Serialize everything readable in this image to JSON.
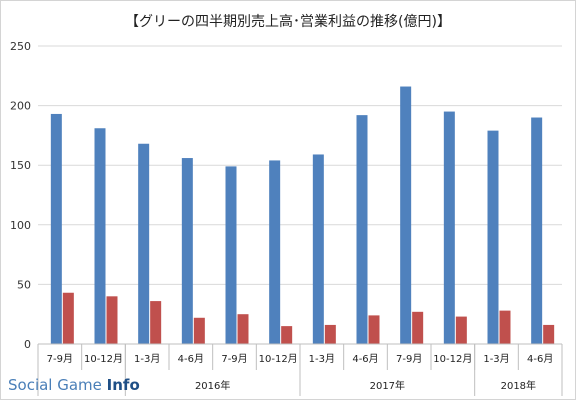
{
  "chart_data": {
    "type": "bar",
    "title": "【グリーの四半期別売上高･営業利益の推移(億円)】",
    "categories": [
      "7-9月",
      "10-12月",
      "1-3月",
      "4-6月",
      "7-9月",
      "10-12月",
      "1-3月",
      "4-6月",
      "7-9月",
      "10-12月",
      "1-3月",
      "4-6月"
    ],
    "groups": [
      {
        "label": "2016年",
        "start": 2,
        "end": 6
      },
      {
        "label": "2017年",
        "start": 6,
        "end": 10
      },
      {
        "label": "2018年",
        "start": 10,
        "end": 12
      }
    ],
    "series": [
      {
        "color": "#4f81bd",
        "values": [
          193,
          181,
          168,
          156,
          149,
          154,
          159,
          192,
          216,
          195,
          179,
          190
        ]
      },
      {
        "color": "#c0504d",
        "values": [
          43,
          40,
          36,
          22,
          25,
          15,
          16,
          24,
          27,
          23,
          28,
          16
        ]
      }
    ],
    "ylim": [
      0,
      250
    ],
    "yticks": [
      0,
      50,
      100,
      150,
      200,
      250
    ],
    "grid": true,
    "xlabel": "",
    "ylabel": ""
  },
  "watermark": {
    "part1": "Social Game ",
    "part2": "Info"
  }
}
